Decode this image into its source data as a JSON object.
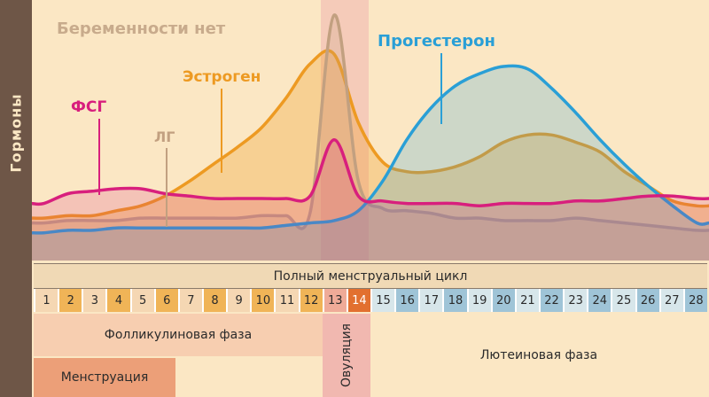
{
  "y_axis_label": "Гормоны",
  "cycle_header": "Полный менструальный цикл",
  "days": [
    {
      "n": "1",
      "color": "#f5d7b3"
    },
    {
      "n": "2",
      "color": "#f0b457"
    },
    {
      "n": "3",
      "color": "#f5d7b3"
    },
    {
      "n": "4",
      "color": "#f0b457"
    },
    {
      "n": "5",
      "color": "#f5d7b3"
    },
    {
      "n": "6",
      "color": "#f0b457"
    },
    {
      "n": "7",
      "color": "#f5d7b3"
    },
    {
      "n": "8",
      "color": "#f0b457"
    },
    {
      "n": "9",
      "color": "#f5d7b3"
    },
    {
      "n": "10",
      "color": "#f0b457"
    },
    {
      "n": "11",
      "color": "#f5d7b3"
    },
    {
      "n": "12",
      "color": "#f0b457"
    },
    {
      "n": "13",
      "color": "#efab98"
    },
    {
      "n": "14",
      "color": "#e2702f"
    },
    {
      "n": "15",
      "color": "#d7e6ea"
    },
    {
      "n": "16",
      "color": "#9fc4d7"
    },
    {
      "n": "17",
      "color": "#d7e6ea"
    },
    {
      "n": "18",
      "color": "#9fc4d7"
    },
    {
      "n": "19",
      "color": "#d7e6ea"
    },
    {
      "n": "20",
      "color": "#9fc4d7"
    },
    {
      "n": "21",
      "color": "#d7e6ea"
    },
    {
      "n": "22",
      "color": "#9fc4d7"
    },
    {
      "n": "23",
      "color": "#d7e6ea"
    },
    {
      "n": "24",
      "color": "#9fc4d7"
    },
    {
      "n": "25",
      "color": "#d7e6ea"
    },
    {
      "n": "26",
      "color": "#9fc4d7"
    },
    {
      "n": "27",
      "color": "#d7e6ea"
    },
    {
      "n": "28",
      "color": "#9fc4d7"
    }
  ],
  "phases": {
    "follicular": "Фолликулиновая фаза",
    "menstruation": "Менструация",
    "ovulation": "Овуляция",
    "luteal": "Лютеиновая фаза"
  },
  "chart_data": {
    "type": "line",
    "title": "Беременности нет",
    "ylabel": "Гормоны",
    "x": [
      1,
      2,
      3,
      4,
      5,
      6,
      7,
      8,
      9,
      10,
      11,
      12,
      13,
      14,
      15,
      16,
      17,
      18,
      19,
      20,
      21,
      22,
      23,
      24,
      25,
      26,
      27,
      28
    ],
    "xlim": [
      0.5,
      28.5
    ],
    "ylim": [
      0,
      100
    ],
    "series": [
      {
        "name": "ФСГ",
        "color": "#d81f7d",
        "values": [
          19,
          23,
          24,
          25,
          25,
          23,
          22,
          21,
          21,
          21,
          21,
          22,
          45,
          22,
          20,
          19,
          19,
          19,
          18,
          19,
          19,
          19,
          20,
          20,
          21,
          22,
          22,
          21
        ]
      },
      {
        "name": "ЛГ",
        "color": "#c2a080",
        "values": [
          11,
          12,
          12,
          12,
          13,
          13,
          13,
          13,
          13,
          14,
          14,
          15,
          96,
          28,
          17,
          16,
          15,
          13,
          13,
          12,
          12,
          12,
          13,
          12,
          11,
          10,
          9,
          8
        ]
      },
      {
        "name": "Эстроген",
        "color": "#ed9a22",
        "values": [
          13,
          14,
          14,
          16,
          18,
          22,
          28,
          35,
          42,
          50,
          62,
          76,
          80,
          52,
          36,
          32,
          32,
          34,
          38,
          44,
          47,
          47,
          44,
          40,
          32,
          26,
          20,
          18
        ]
      },
      {
        "name": "Прогестерон",
        "color": "#2a9fd6",
        "values": [
          7,
          8,
          8,
          9,
          9,
          9,
          9,
          9,
          9,
          9,
          10,
          11,
          12,
          16,
          28,
          45,
          58,
          67,
          72,
          75,
          74,
          66,
          56,
          45,
          35,
          26,
          18,
          11
        ]
      }
    ]
  }
}
